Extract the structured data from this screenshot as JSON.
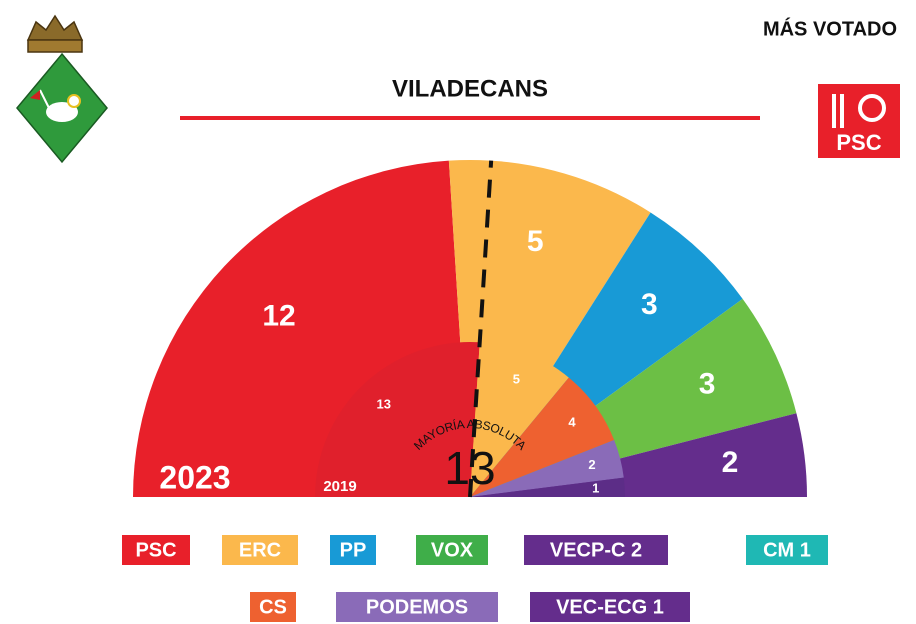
{
  "header": {
    "most_voted_label": "MÁS VOTADO",
    "most_voted_logo": "PSC"
  },
  "chart_data": {
    "type": "parliament",
    "title": "VILADECANS",
    "majority": {
      "value": 13,
      "label": "MAYORÍA ABSOLUTA"
    },
    "series": [
      {
        "name": "2023",
        "values": [
          12,
          5,
          3,
          3,
          2
        ],
        "colors": [
          "#e8202a",
          "#fbb84c",
          "#189ad6",
          "#6cbf45",
          "#642d8c"
        ]
      },
      {
        "name": "2019",
        "values": [
          13,
          5,
          4,
          2,
          1
        ],
        "colors": [
          "#e0202c",
          "#fbb84c",
          "#ee6130",
          "#8a6bb8",
          "#5c2d87"
        ]
      }
    ],
    "legend": [
      {
        "name": "PSC",
        "color": "#e8202a"
      },
      {
        "name": "ERC",
        "color": "#fbb84c"
      },
      {
        "name": "PP",
        "color": "#189ad6"
      },
      {
        "name": "VOX",
        "color": "#3fae49"
      },
      {
        "name": "VECP-C 2",
        "color": "#642d8c"
      },
      {
        "name": "CM 1",
        "color": "#1fb8b4"
      },
      {
        "name": "CS",
        "color": "#ee6130"
      },
      {
        "name": "PODEMOS",
        "color": "#8a6bb8"
      },
      {
        "name": "VEC-ECG 1",
        "color": "#642d8c"
      }
    ]
  }
}
